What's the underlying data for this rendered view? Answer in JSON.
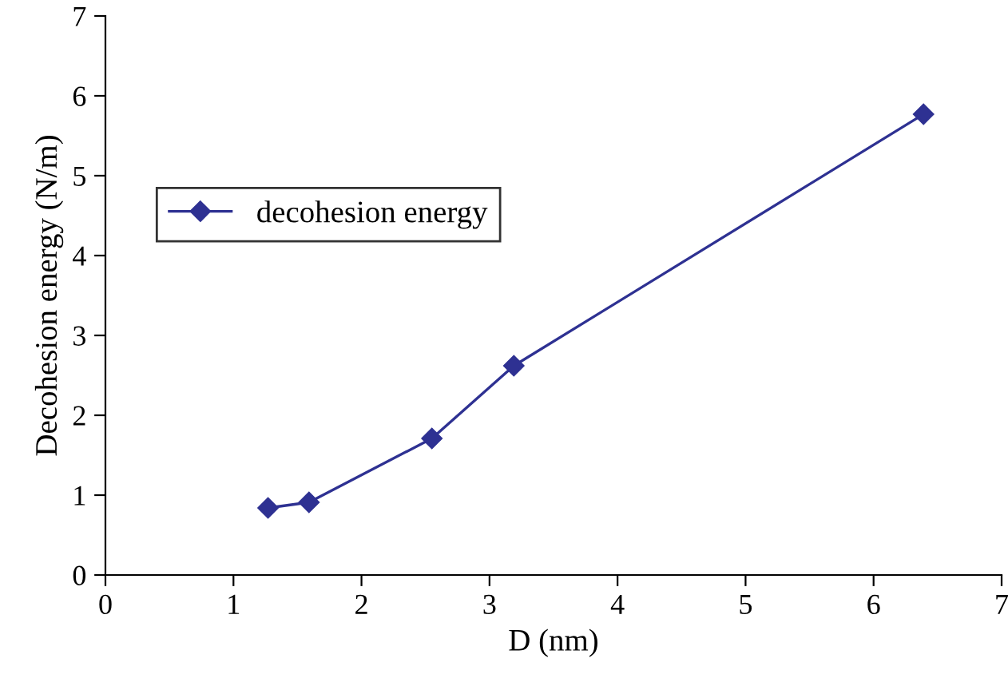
{
  "chart_data": {
    "type": "line",
    "xlabel": "D (nm)",
    "ylabel": "Decohesion energy (N/m)",
    "x": [
      1.27,
      1.59,
      2.55,
      3.19,
      6.39
    ],
    "series": [
      {
        "name": "decohesion energy",
        "color": "#2e3192",
        "values": [
          0.84,
          0.91,
          1.71,
          2.62,
          5.77
        ]
      }
    ],
    "xlim": [
      0,
      7
    ],
    "ylim": [
      0,
      7
    ],
    "xticks": [
      0,
      1,
      2,
      3,
      4,
      5,
      6,
      7
    ],
    "yticks": [
      0,
      1,
      2,
      3,
      4,
      5,
      6,
      7
    ],
    "marker": "diamond",
    "line_style": "solid",
    "grid": false,
    "legend": "top left"
  }
}
